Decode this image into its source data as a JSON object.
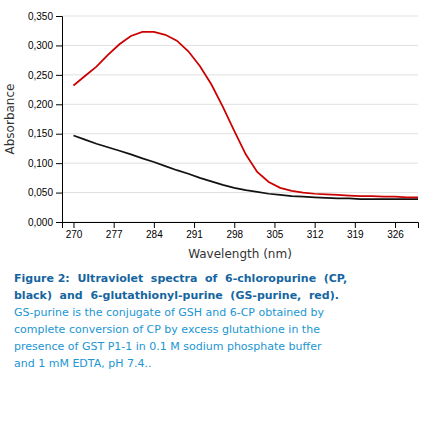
{
  "chart_data": {
    "type": "line",
    "x_label": "Wavelength (nm)",
    "y_label": "Absorbance",
    "annotations": [
      "Figure 2:  Ultraviolet  spectra  of  6-chloropurine  (CP,",
      "black)  and  6-glutathionyl-purine  (GS-purine,  red).",
      "GS-purine is the conjugate of GSH and 6-CP obtained by",
      "complete conversion of CP by excess glutathione in the",
      "presence of GST P1-1 in 0.1 M sodium phosphate buffer",
      "and 1 mM EDTA, pH 7.4.."
    ],
    "x": [
      270,
      272,
      274,
      276,
      278,
      280,
      282,
      284,
      286,
      288,
      290,
      292,
      294,
      296,
      298,
      300,
      302,
      304,
      306,
      308,
      310,
      312,
      314,
      316,
      318,
      320,
      322,
      324,
      326,
      328,
      330
    ],
    "series": [
      {
        "color": "#111111",
        "values": [
          0.147,
          0.14,
          0.133,
          0.127,
          0.121,
          0.115,
          0.108,
          0.102,
          0.095,
          0.088,
          0.082,
          0.075,
          0.069,
          0.063,
          0.058,
          0.054,
          0.051,
          0.048,
          0.046,
          0.044,
          0.043,
          0.042,
          0.041,
          0.04,
          0.04,
          0.039,
          0.039,
          0.039,
          0.039,
          0.039,
          0.039
        ]
      },
      {
        "color": "#cc0000",
        "values": [
          0.232,
          0.248,
          0.264,
          0.284,
          0.302,
          0.316,
          0.323,
          0.323,
          0.318,
          0.308,
          0.29,
          0.265,
          0.234,
          0.196,
          0.155,
          0.115,
          0.085,
          0.068,
          0.058,
          0.053,
          0.05,
          0.048,
          0.047,
          0.046,
          0.045,
          0.044,
          0.044,
          0.043,
          0.043,
          0.042,
          0.042
        ]
      }
    ],
    "xlim": [
      268,
      330
    ],
    "xticks": [
      270,
      277,
      284,
      291,
      298,
      305,
      312,
      319,
      326
    ],
    "ylim": [
      0.0,
      0.35
    ],
    "yticks": [
      {
        "value": 0.0,
        "label": "0,000"
      },
      {
        "value": 0.05,
        "label": "0,050"
      },
      {
        "value": 0.1,
        "label": "0,100"
      },
      {
        "value": 0.15,
        "label": "0,150"
      },
      {
        "value": 0.2,
        "label": "0,200"
      },
      {
        "value": 0.25,
        "label": "0,250"
      },
      {
        "value": 0.3,
        "label": "0,300"
      },
      {
        "value": 0.35,
        "label": "0,350"
      }
    ],
    "grid": true
  }
}
